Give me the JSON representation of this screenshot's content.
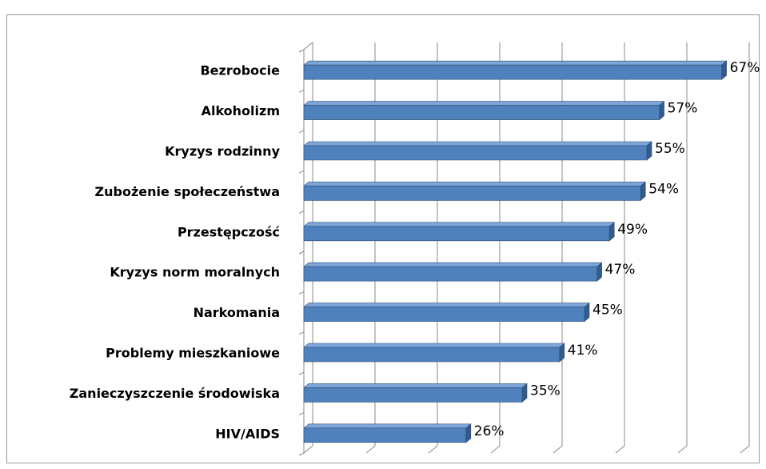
{
  "chart_data": {
    "type": "bar3d_horizontal",
    "categories": [
      "Bezrobocie",
      "Alkoholizm",
      "Kryzys rodzinny",
      "Zubożenie społeczeństwa",
      "Przestępczość",
      "Kryzys norm moralnych",
      "Narkomania",
      "Problemy mieszkaniowe",
      "Zanieczyszczenie środowiska",
      "HIV/AIDS"
    ],
    "values": [
      67,
      57,
      55,
      54,
      49,
      47,
      45,
      41,
      35,
      26
    ],
    "value_labels": [
      "67%",
      "57%",
      "55%",
      "54%",
      "49%",
      "47%",
      "45%",
      "41%",
      "35%",
      "26%"
    ],
    "color": "#4f81bd",
    "xlim": [
      0,
      70
    ],
    "xticks": [
      0,
      10,
      20,
      30,
      40,
      50,
      60,
      70
    ],
    "grid": true
  }
}
